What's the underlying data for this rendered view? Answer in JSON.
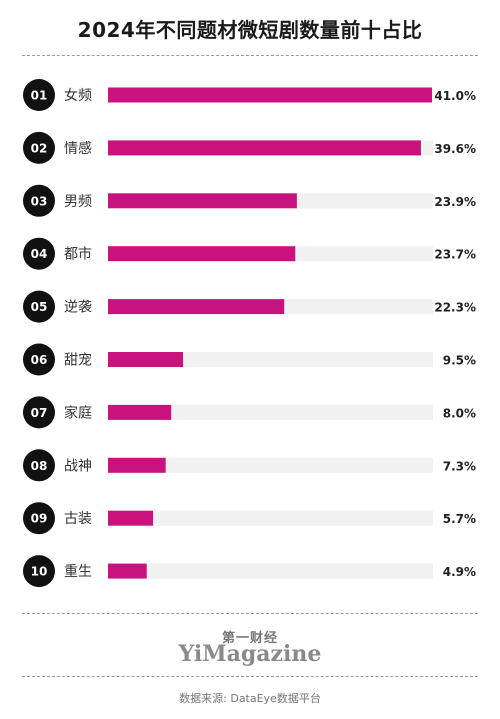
{
  "title": "2024年不同题材微短剧数量前十占比",
  "chart_data": {
    "type": "bar",
    "orientation": "horizontal",
    "ranks": [
      "01",
      "02",
      "03",
      "04",
      "05",
      "06",
      "07",
      "08",
      "09",
      "10"
    ],
    "categories": [
      "女频",
      "情感",
      "男频",
      "都市",
      "逆袭",
      "甜宠",
      "家庭",
      "战神",
      "古装",
      "重生"
    ],
    "values": [
      41.0,
      39.6,
      23.9,
      23.7,
      22.3,
      9.5,
      8.0,
      7.3,
      5.7,
      4.9
    ],
    "value_labels": [
      "41.0%",
      "39.6%",
      "23.9%",
      "23.7%",
      "22.3%",
      "9.5%",
      "8.0%",
      "7.3%",
      "5.7%",
      "4.9%"
    ],
    "xlim": [
      0,
      41.0
    ],
    "bar_color": "#c8137e",
    "track_color": "#f1f1f1",
    "badge_color": "#111111"
  },
  "brand": {
    "chinese": "第一财经",
    "english": "YiMagazine"
  },
  "source": "数据来源: DataEye数据平台"
}
